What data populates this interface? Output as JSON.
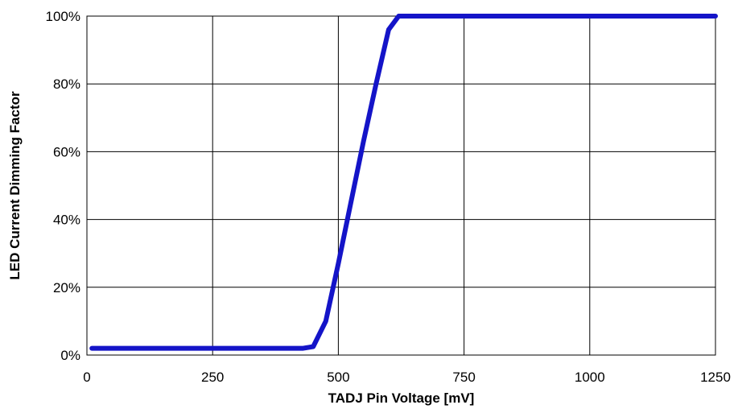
{
  "chart_data": {
    "type": "line",
    "title": "",
    "xlabel": "TADJ Pin Voltage [mV]",
    "ylabel": "LED Current Dimming Factor",
    "xlim": [
      0,
      1250
    ],
    "ylim": [
      0,
      100
    ],
    "x_ticks": [
      0,
      250,
      500,
      750,
      1000,
      1250
    ],
    "y_ticks": [
      0,
      20,
      40,
      60,
      80,
      100
    ],
    "x_tick_labels": [
      "0",
      "250",
      "500",
      "750",
      "1000",
      "1250"
    ],
    "y_tick_labels": [
      "0%",
      "20%",
      "40%",
      "60%",
      "80%",
      "100%"
    ],
    "grid": true,
    "legend": "none",
    "series_color": "#1414c8",
    "series": [
      {
        "x": [
          10,
          100,
          200,
          300,
          400,
          430,
          450,
          475,
          500,
          525,
          550,
          575,
          600,
          620,
          650,
          750,
          1000,
          1250
        ],
        "y": [
          2,
          2,
          2,
          2,
          2,
          2,
          2.5,
          10,
          27,
          45,
          63,
          80,
          96,
          100,
          100,
          100,
          100,
          100
        ]
      }
    ]
  }
}
